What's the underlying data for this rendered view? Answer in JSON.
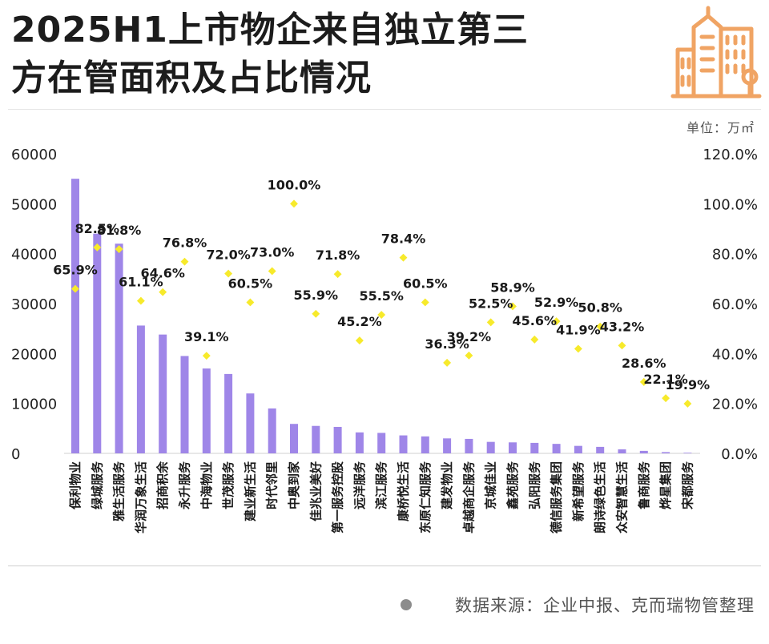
{
  "header": {
    "title_line1": "2025H1上市物企来自独立第三",
    "title_line2": "方在管面积及占比情况",
    "unit": "单位：万㎡"
  },
  "footer": {
    "source": "数据来源：企业中报、克而瑞物管整理"
  },
  "logo": {
    "icon": "building-icon",
    "color": "#f0a464"
  },
  "colors": {
    "bar": "#9f86e8",
    "point": "#f7ea2b",
    "axis_text": "#222222"
  },
  "chart_data": {
    "type": "bar",
    "categories": [
      "保利物业",
      "绿城服务",
      "雅生活服务",
      "华润万象生活",
      "招商积余",
      "永升服务",
      "中海物业",
      "世茂服务",
      "建业新生活",
      "时代邻里",
      "中奥到家",
      "佳兆业美好",
      "第一服务控股",
      "远洋服务",
      "滨江服务",
      "康桥悦生活",
      "东原仁知服务",
      "建发物业",
      "卓越商企服务",
      "京城佳业",
      "鑫苑服务",
      "弘阳服务",
      "德信服务集团",
      "新希望服务",
      "朗诗绿色生活",
      "众安智慧生活",
      "鲁商服务",
      "烨星集团",
      "宋都服务"
    ],
    "series": [
      {
        "type": "bar",
        "axis": "left",
        "values": [
          55000,
          44000,
          42000,
          25600,
          23800,
          19500,
          17000,
          15900,
          12000,
          9000,
          5900,
          5500,
          5300,
          4200,
          4100,
          3600,
          3400,
          3000,
          2900,
          2300,
          2200,
          2100,
          1900,
          1500,
          1300,
          800,
          500,
          250,
          120
        ]
      },
      {
        "type": "scatter",
        "axis": "right",
        "values": [
          65.9,
          82.5,
          81.8,
          61.1,
          64.6,
          76.8,
          39.1,
          72.0,
          60.5,
          73.0,
          100.0,
          55.9,
          71.8,
          45.2,
          55.5,
          78.4,
          60.5,
          36.3,
          39.2,
          52.5,
          58.9,
          45.6,
          52.9,
          41.9,
          50.8,
          43.2,
          28.6,
          22.1,
          19.9
        ],
        "labels": [
          "65.9%",
          "82.5%",
          "81.8%",
          "61.1%",
          "64.6%",
          "76.8%",
          "39.1%",
          "72.0%",
          "60.5%",
          "73.0%",
          "100.0%",
          "55.9%",
          "71.8%",
          "45.2%",
          "55.5%",
          "78.4%",
          "60.5%",
          "36.3%",
          "39.2%",
          "52.5%",
          "58.9%",
          "45.6%",
          "52.9%",
          "41.9%",
          "50.8%",
          "43.2%",
          "28.6%",
          "22.1%",
          "19.9%"
        ]
      }
    ],
    "y_left": {
      "min": 0,
      "max": 60000,
      "ticks": [
        "0",
        "10000",
        "20000",
        "30000",
        "40000",
        "50000",
        "60000"
      ]
    },
    "y_right": {
      "min": 0,
      "max": 120,
      "ticks": [
        "0.0%",
        "20.0%",
        "40.0%",
        "60.0%",
        "80.0%",
        "100.0%",
        "120.0%"
      ]
    },
    "grid": false,
    "legend": "none"
  }
}
